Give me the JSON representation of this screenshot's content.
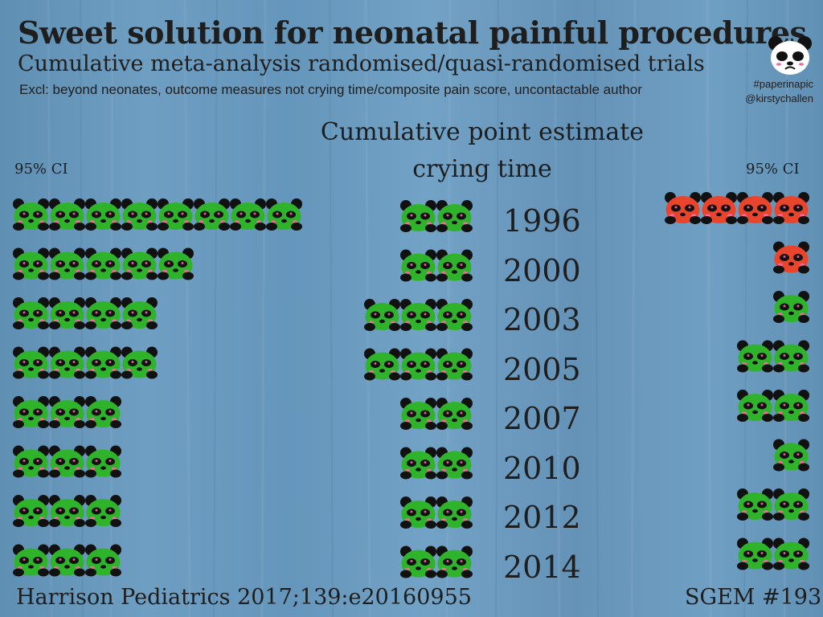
{
  "header": {
    "title": "Sweet solution for neonatal painful procedures",
    "subtitle": "Cumulative meta-analysis randomised/quasi-randomised trials",
    "exclusions": "Excl: beyond neonates, outcome measures not crying time/composite pain score, uncontactable author",
    "hashtag": "#paperinapic",
    "author_handle": "@kirstychallen"
  },
  "center_heading_line1": "Cumulative point estimate",
  "center_heading_line2": "crying time",
  "ci_left_label": "95% CI",
  "ci_right_label": "95% CI",
  "footer": {
    "citation": "Harrison Pediatrics 2017;139:e20160955",
    "episode": "SGEM #193"
  },
  "colors": {
    "panda_good": "#2fb32b",
    "panda_bad": "#e8452c",
    "panda_black": "#111111"
  },
  "icons": {
    "panda": "panda-icon",
    "logo": "crying-panda-logo-icon"
  },
  "chart_data": {
    "type": "table",
    "categories": [
      "1996",
      "2000",
      "2003",
      "2005",
      "2007",
      "2010",
      "2012",
      "2014"
    ],
    "series": [
      {
        "values": [
          8,
          5,
          4,
          4,
          3,
          3,
          3,
          3
        ]
      },
      {
        "values": [
          2,
          2,
          3,
          3,
          2,
          2,
          2,
          2
        ]
      },
      {
        "values": [
          4,
          1,
          1,
          2,
          2,
          1,
          2,
          2
        ]
      }
    ],
    "right_icon_status": [
      "bad",
      "bad",
      "good",
      "good",
      "good",
      "good",
      "good",
      "good"
    ]
  }
}
